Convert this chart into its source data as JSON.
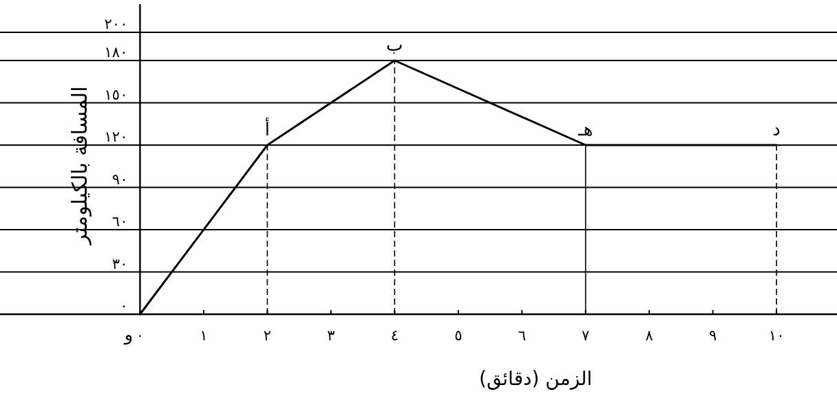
{
  "chart_data": {
    "type": "line",
    "xlabel": "الزمن (دقائق)",
    "ylabel": "المسافة بالكيلومتر",
    "x": [
      0,
      2,
      4,
      7,
      10
    ],
    "series": [
      {
        "color": "#000000",
        "values": [
          0,
          120,
          180,
          120,
          120
        ]
      }
    ],
    "xlim": [
      -2.2,
      10.95
    ],
    "ylim": [
      0,
      220
    ],
    "xticks": [
      {
        "value": 0,
        "label": "٠"
      },
      {
        "value": 1,
        "label": "١"
      },
      {
        "value": 2,
        "label": "٢"
      },
      {
        "value": 3,
        "label": "٣"
      },
      {
        "value": 4,
        "label": "٤"
      },
      {
        "value": 5,
        "label": "٥"
      },
      {
        "value": 6,
        "label": "٦"
      },
      {
        "value": 7,
        "label": "٧"
      },
      {
        "value": 8,
        "label": "٨"
      },
      {
        "value": 9,
        "label": "٩"
      },
      {
        "value": 10,
        "label": "١٠"
      }
    ],
    "yticks": [
      {
        "value": 0,
        "label": "٠"
      },
      {
        "value": 30,
        "label": "٣٠"
      },
      {
        "value": 60,
        "label": "٦٠"
      },
      {
        "value": 90,
        "label": "٩٠"
      },
      {
        "value": 120,
        "label": "١٢٠"
      },
      {
        "value": 150,
        "label": "١٥٠"
      },
      {
        "value": 180,
        "label": "١٨٠"
      },
      {
        "value": 200,
        "label": "٢٠٠"
      }
    ],
    "grid": "y",
    "ref_lines": [
      {
        "axis": "x",
        "value": 2,
        "line_style": "dashed"
      },
      {
        "axis": "x",
        "value": 4,
        "line_style": "dashed"
      },
      {
        "axis": "x",
        "value": 7,
        "line_style": "solid"
      },
      {
        "axis": "x",
        "value": 10,
        "line_style": "dashed"
      }
    ],
    "annotations": [
      {
        "text": "و",
        "x": 0,
        "y": 0
      },
      {
        "text": "أ",
        "x": 2,
        "y": 120
      },
      {
        "text": "ب",
        "x": 4,
        "y": 180
      },
      {
        "text": "هـ",
        "x": 7,
        "y": 120
      },
      {
        "text": "د",
        "x": 10,
        "y": 120
      }
    ]
  }
}
